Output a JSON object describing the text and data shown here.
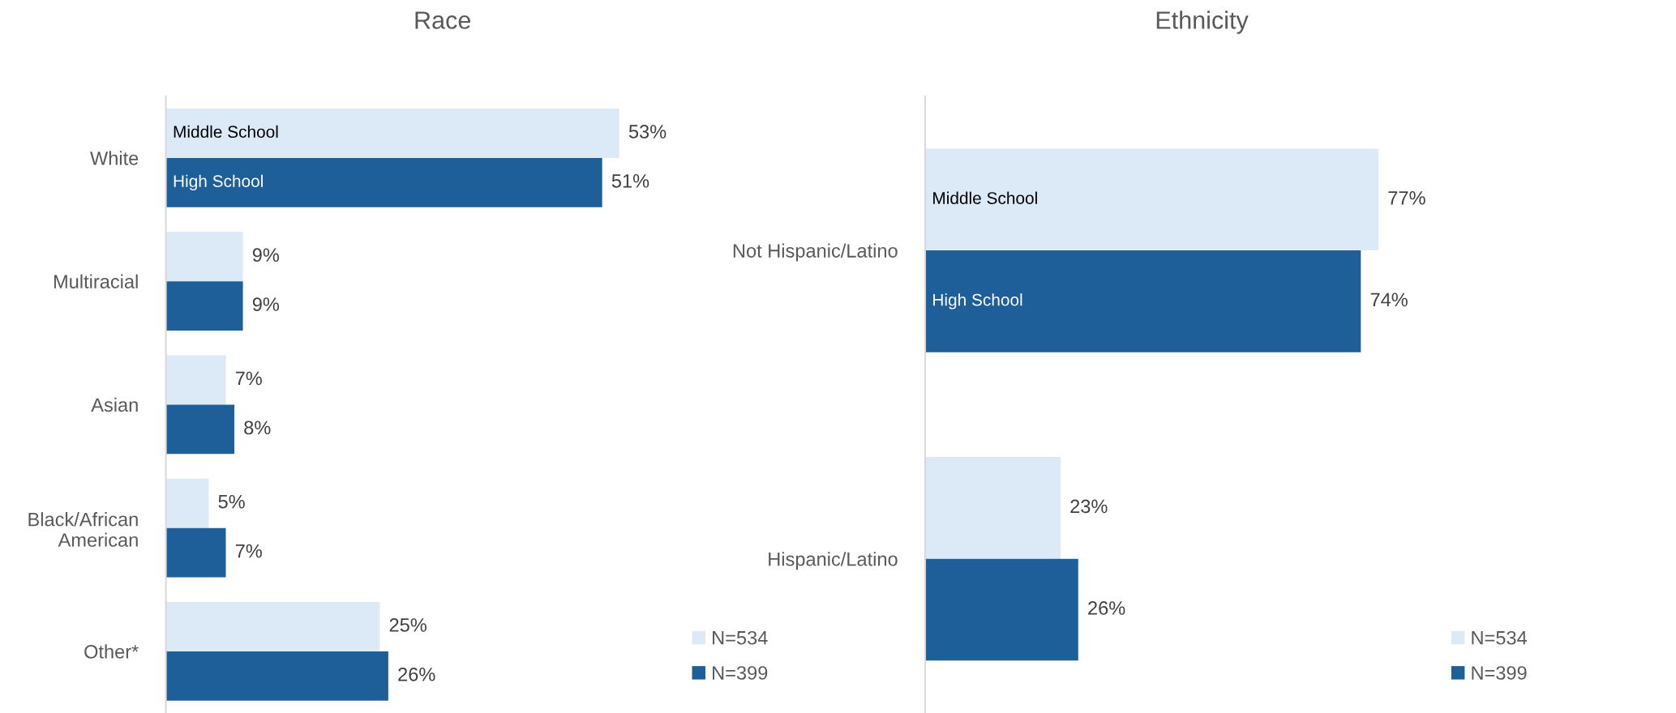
{
  "chart_data": [
    {
      "type": "bar",
      "orientation": "horizontal",
      "title": "Race",
      "categories": [
        "White",
        "Multiracial",
        "Asian",
        "Black/African\nAmerican",
        "Other*"
      ],
      "series": [
        {
          "name": "N=534",
          "color": "#dce9f6",
          "values": [
            53,
            9,
            7,
            5,
            25
          ],
          "value_labels": [
            "53%",
            "9%",
            "7%",
            "5%",
            "25%"
          ]
        },
        {
          "name": "N=399",
          "color": "#1f5f99",
          "values": [
            51,
            9,
            8,
            7,
            26
          ],
          "value_labels": [
            "51%",
            "9%",
            "8%",
            "7%",
            "26%"
          ]
        }
      ],
      "annotations": [
        "Middle School",
        "High School"
      ],
      "legend": "bottom right"
    },
    {
      "type": "bar",
      "orientation": "horizontal",
      "title": "Ethnicity",
      "categories": [
        "Not Hispanic/Latino",
        "Hispanic/Latino"
      ],
      "series": [
        {
          "name": "N=534",
          "color": "#dce9f6",
          "values": [
            77,
            23
          ],
          "value_labels": [
            "77%",
            "23%"
          ]
        },
        {
          "name": "N=399",
          "color": "#1f5f99",
          "values": [
            74,
            26
          ],
          "value_labels": [
            "74%",
            "26%"
          ]
        }
      ],
      "annotations": [
        "Middle School",
        "High School"
      ],
      "legend": "bottom right"
    }
  ]
}
